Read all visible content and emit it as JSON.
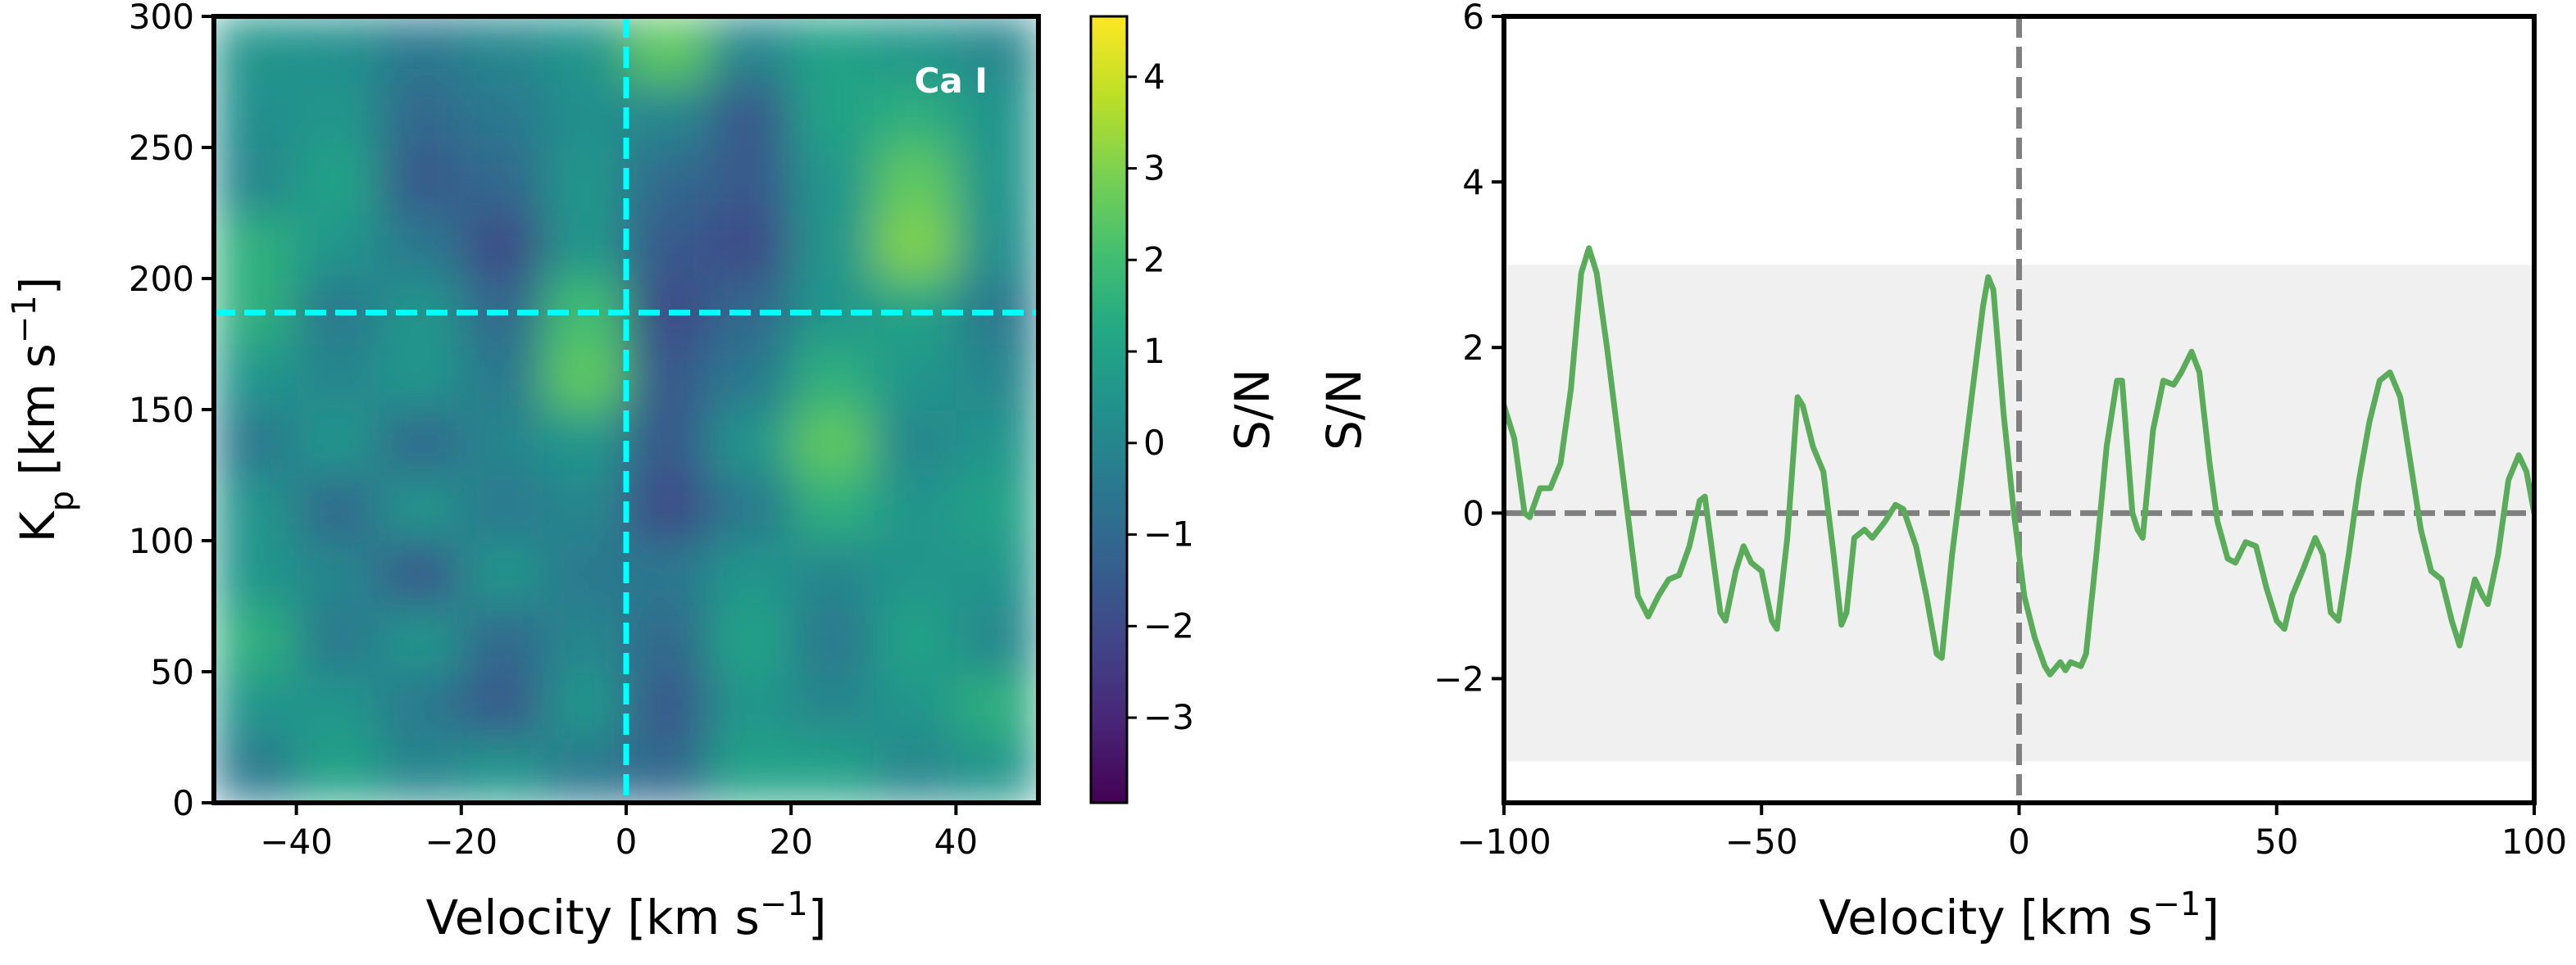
{
  "chart_data": [
    {
      "type": "heatmap",
      "annotation": "Ca I",
      "xlabel": [
        {
          "text": "Velocity [km s"
        },
        {
          "text": "−1",
          "sup": true
        },
        {
          "text": "]"
        }
      ],
      "ylabel": [
        {
          "text": "K"
        },
        {
          "text": "p",
          "sub": true
        },
        {
          "text": " [km s"
        },
        {
          "text": "−1",
          "sup": true
        },
        {
          "text": "]"
        }
      ],
      "xlim": [
        -50,
        50
      ],
      "ylim": [
        0,
        300
      ],
      "xticks": [
        {
          "value": -40,
          "label": "−40"
        },
        {
          "value": -20,
          "label": "−20"
        },
        0,
        20,
        40
      ],
      "yticks": [
        0,
        50,
        100,
        150,
        200,
        250,
        300
      ],
      "colormap": "viridis",
      "x": [
        -45,
        -35,
        -25,
        -15,
        -5,
        5,
        15,
        25,
        35,
        45
      ],
      "y": [
        12.5,
        37.5,
        62.5,
        87.5,
        112.5,
        137.5,
        162.5,
        187.5,
        212.5,
        237.5,
        262.5,
        287.5
      ],
      "z": [
        [
          -0.5,
          1,
          0,
          0.5,
          -0.5,
          -1,
          1,
          1,
          0,
          0.5
        ],
        [
          0.5,
          0.5,
          -0.5,
          -1.5,
          0.5,
          -1.5,
          0.5,
          0,
          0.5,
          1.5
        ],
        [
          1.5,
          -0.5,
          0.5,
          -1,
          0,
          -1,
          1,
          -0.5,
          1,
          0
        ],
        [
          0.5,
          0,
          -1.5,
          0.5,
          -0.5,
          -0.5,
          0.5,
          0,
          0.5,
          0.5
        ],
        [
          0.5,
          -1,
          0.5,
          -0.5,
          0,
          -2,
          -0.5,
          1.5,
          0.5,
          1
        ],
        [
          -0.5,
          0.5,
          -1,
          0,
          0.5,
          -1.5,
          0.5,
          2.5,
          0,
          0.5
        ],
        [
          0.5,
          0,
          0.5,
          -0.5,
          2.5,
          -1.5,
          -0.5,
          1.5,
          0.5,
          0
        ],
        [
          1.5,
          -0.5,
          0.5,
          -1,
          2,
          -2,
          -1,
          0.5,
          1,
          -0.5
        ],
        [
          1.5,
          0.5,
          -0.5,
          -2,
          0.5,
          -1.5,
          -2,
          0.5,
          3,
          0.3
        ],
        [
          0,
          1,
          -1.5,
          -1,
          0.5,
          -1,
          -1.5,
          0.5,
          2.5,
          0.5
        ],
        [
          0.3,
          0.5,
          -1,
          -0.5,
          0.3,
          0,
          -1.5,
          1,
          1.5,
          0.5
        ],
        [
          0.5,
          0.3,
          -0.5,
          0,
          0.5,
          2.5,
          0,
          1,
          0.5,
          0
        ]
      ],
      "vlines": [
        0
      ],
      "hlines": [
        187
      ],
      "line_color": "#00ffff",
      "colorbar": {
        "label": "S/N",
        "lim": [
          -3.93,
          4.66
        ],
        "ticks": [
          {
            "value": -3,
            "label": "−3"
          },
          {
            "value": -2,
            "label": "−2"
          },
          {
            "value": -1,
            "label": "−1"
          },
          0,
          1,
          2,
          3,
          4
        ]
      }
    },
    {
      "type": "line",
      "xlabel": [
        {
          "text": "Velocity [km s"
        },
        {
          "text": "−1",
          "sup": true
        },
        {
          "text": "]"
        }
      ],
      "ylabel": [
        {
          "text": "S/N"
        }
      ],
      "xlim": [
        -100,
        100
      ],
      "ylim": [
        -3.5,
        6
      ],
      "xticks": [
        {
          "value": -100,
          "label": "−100"
        },
        {
          "value": -50,
          "label": "−50"
        },
        0,
        50,
        100
      ],
      "yticks": [
        {
          "value": -2,
          "label": "−2"
        },
        0,
        2,
        4,
        6
      ],
      "band": [
        -3,
        3
      ],
      "band_color": "#f0f0f0",
      "vlines": [
        0
      ],
      "hlines": [
        0
      ],
      "line_color": "#808080",
      "color": "#5aac5a",
      "x": [
        -100,
        -98,
        -96,
        -95,
        -93,
        -91,
        -89,
        -87,
        -85,
        -83.5,
        -82,
        -80,
        -78,
        -76,
        -74,
        -72,
        -70,
        -68,
        -66,
        -64,
        -62,
        -61,
        -59.5,
        -58,
        -57,
        -55,
        -53.5,
        -52,
        -50,
        -48,
        -47,
        -45,
        -43,
        -42,
        -40,
        -38,
        -36,
        -34.5,
        -33.5,
        -32,
        -30,
        -28.5,
        -26,
        -24,
        -22.5,
        -20,
        -18,
        -16,
        -15,
        -13,
        -11,
        -9,
        -7,
        -6,
        -5,
        -3,
        -1,
        1,
        3,
        5,
        6,
        8,
        9,
        10,
        12,
        13,
        15,
        17,
        19,
        20,
        22,
        23,
        24,
        26,
        28,
        30,
        31.5,
        33.5,
        35,
        37,
        38.5,
        40.5,
        42,
        44,
        46,
        48,
        50,
        51.5,
        53,
        55,
        57.5,
        59,
        60.5,
        62,
        64,
        66,
        68,
        70,
        72,
        74,
        76,
        78,
        80,
        82,
        84,
        85.5,
        87,
        88.5,
        90,
        91,
        93,
        95,
        97,
        98.5,
        100
      ],
      "values": [
        1.3,
        0.9,
        0.0,
        -0.05,
        0.3,
        0.3,
        0.6,
        1.5,
        2.9,
        3.2,
        2.9,
        2.0,
        1.0,
        0.0,
        -1.0,
        -1.25,
        -1.0,
        -0.8,
        -0.75,
        -0.4,
        0.15,
        0.2,
        -0.5,
        -1.2,
        -1.3,
        -0.7,
        -0.4,
        -0.6,
        -0.7,
        -1.3,
        -1.4,
        -0.3,
        1.4,
        1.3,
        0.8,
        0.5,
        -0.5,
        -1.35,
        -1.2,
        -0.3,
        -0.2,
        -0.3,
        -0.1,
        0.1,
        0.05,
        -0.4,
        -1.0,
        -1.7,
        -1.75,
        -0.5,
        0.5,
        1.5,
        2.5,
        2.85,
        2.7,
        1.2,
        0.0,
        -1.0,
        -1.5,
        -1.85,
        -1.95,
        -1.8,
        -1.9,
        -1.8,
        -1.85,
        -1.7,
        -0.5,
        0.8,
        1.6,
        1.6,
        0.0,
        -0.2,
        -0.3,
        1.0,
        1.6,
        1.55,
        1.7,
        1.95,
        1.7,
        0.6,
        -0.1,
        -0.55,
        -0.6,
        -0.35,
        -0.4,
        -0.9,
        -1.3,
        -1.4,
        -1.0,
        -0.7,
        -0.3,
        -0.5,
        -1.2,
        -1.3,
        -0.5,
        0.4,
        1.1,
        1.6,
        1.7,
        1.4,
        0.6,
        -0.2,
        -0.7,
        -0.8,
        -1.3,
        -1.6,
        -1.2,
        -0.8,
        -1.0,
        -1.1,
        -0.5,
        0.4,
        0.7,
        0.5,
        0.0
      ]
    }
  ]
}
